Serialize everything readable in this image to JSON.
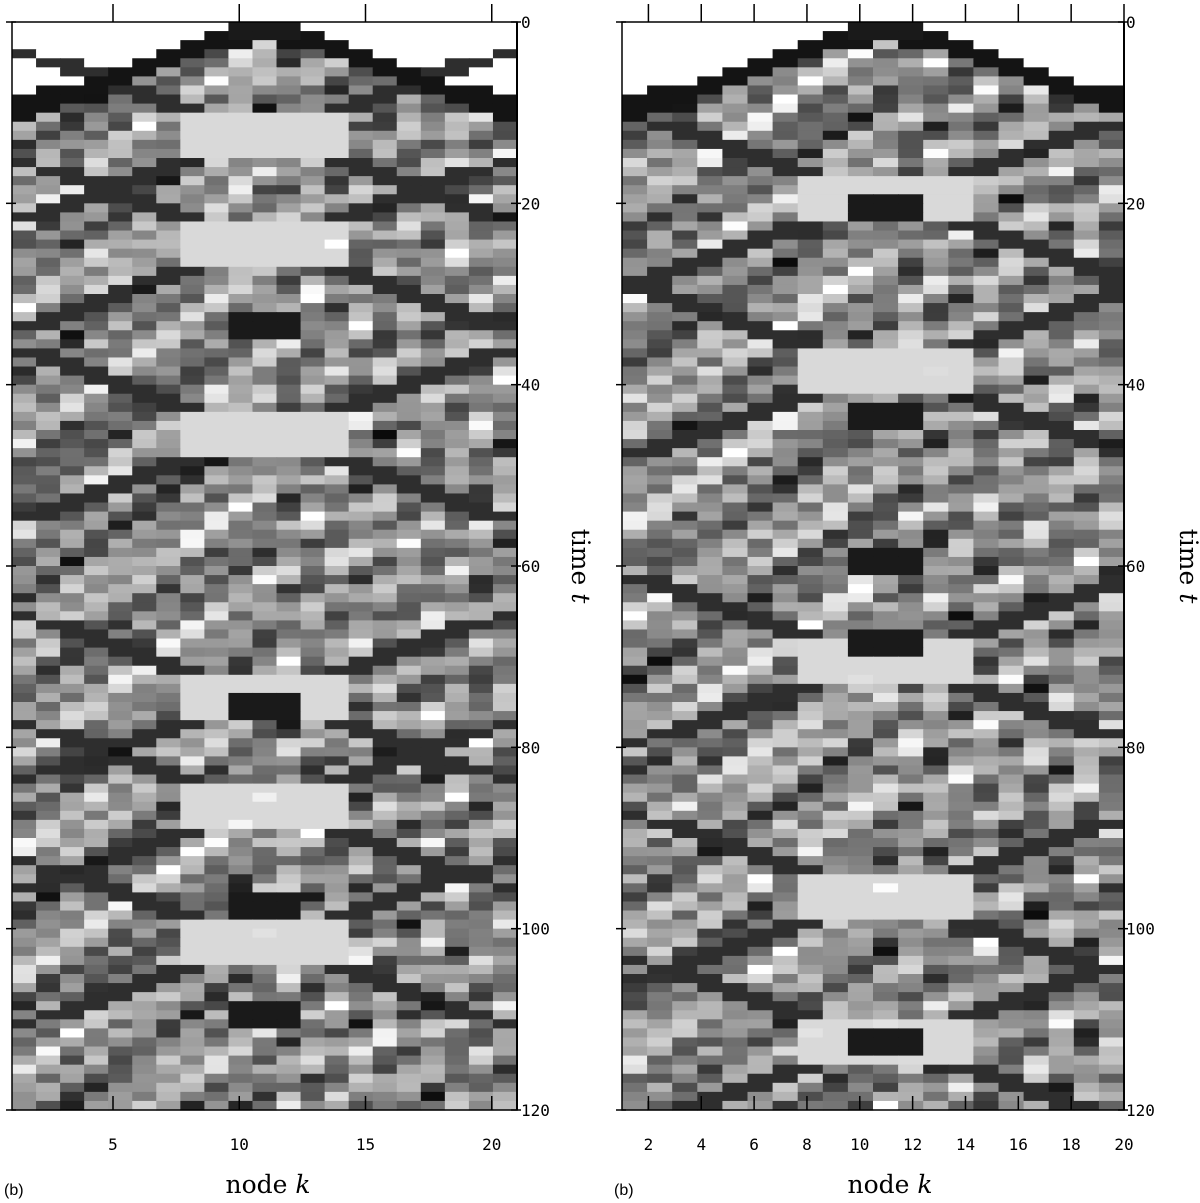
{
  "chart_data": [
    {
      "type": "heatmap",
      "panel_label": "(b)",
      "colormap": "grayscale",
      "xlabel": "node ",
      "xlabel_var": "k",
      "ylabel": "time ",
      "ylabel_var": "t",
      "xlim": [
        1,
        21
      ],
      "ylim": [
        0,
        120
      ],
      "xticks": [
        5,
        10,
        15,
        20
      ],
      "yticks": [
        0,
        20,
        40,
        60,
        80,
        100,
        120
      ],
      "nodes": 21,
      "center_node": 11,
      "recurrence_times": [
        12,
        24,
        45,
        74,
        86,
        101
      ],
      "dark_center_times": [
        0,
        33,
        75,
        97,
        109
      ]
    },
    {
      "type": "heatmap",
      "panel_label": "(b)",
      "colormap": "grayscale",
      "xlabel": "node ",
      "xlabel_var": "k",
      "ylabel": "time ",
      "ylabel_var": "t",
      "xlim": [
        1,
        20
      ],
      "ylim": [
        0,
        120
      ],
      "xticks": [
        2,
        4,
        6,
        8,
        10,
        12,
        14,
        16,
        18,
        20
      ],
      "yticks": [
        0,
        20,
        40,
        60,
        80,
        100,
        120
      ],
      "nodes": 20,
      "center_node": 11,
      "recurrence_times": [
        19,
        38,
        70,
        96,
        112
      ],
      "dark_center_times": [
        0,
        20,
        43,
        59,
        68,
        112
      ]
    }
  ]
}
